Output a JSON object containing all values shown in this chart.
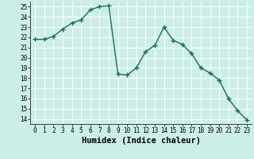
{
  "x": [
    0,
    1,
    2,
    3,
    4,
    5,
    6,
    7,
    8,
    9,
    10,
    11,
    12,
    13,
    14,
    15,
    16,
    17,
    18,
    19,
    20,
    21,
    22,
    23
  ],
  "y": [
    21.8,
    21.8,
    22.1,
    22.8,
    23.4,
    23.7,
    24.7,
    25.0,
    25.1,
    18.4,
    18.3,
    19.0,
    20.6,
    21.2,
    23.0,
    21.7,
    21.3,
    20.4,
    19.0,
    18.5,
    17.8,
    16.0,
    14.8,
    13.9
  ],
  "line_color": "#1a6b5a",
  "marker": "+",
  "markersize": 4,
  "markeredgewidth": 1.0,
  "linewidth": 1.0,
  "xlabel": "Humidex (Indice chaleur)",
  "bg_color": "#cceee8",
  "grid_color": "#ffffff",
  "ylim": [
    13.5,
    25.5
  ],
  "xlim": [
    -0.5,
    23.5
  ],
  "yticks": [
    14,
    15,
    16,
    17,
    18,
    19,
    20,
    21,
    22,
    23,
    24,
    25
  ],
  "xticks": [
    0,
    1,
    2,
    3,
    4,
    5,
    6,
    7,
    8,
    9,
    10,
    11,
    12,
    13,
    14,
    15,
    16,
    17,
    18,
    19,
    20,
    21,
    22,
    23
  ],
  "tick_fontsize": 5.5,
  "xlabel_fontsize": 7.5
}
